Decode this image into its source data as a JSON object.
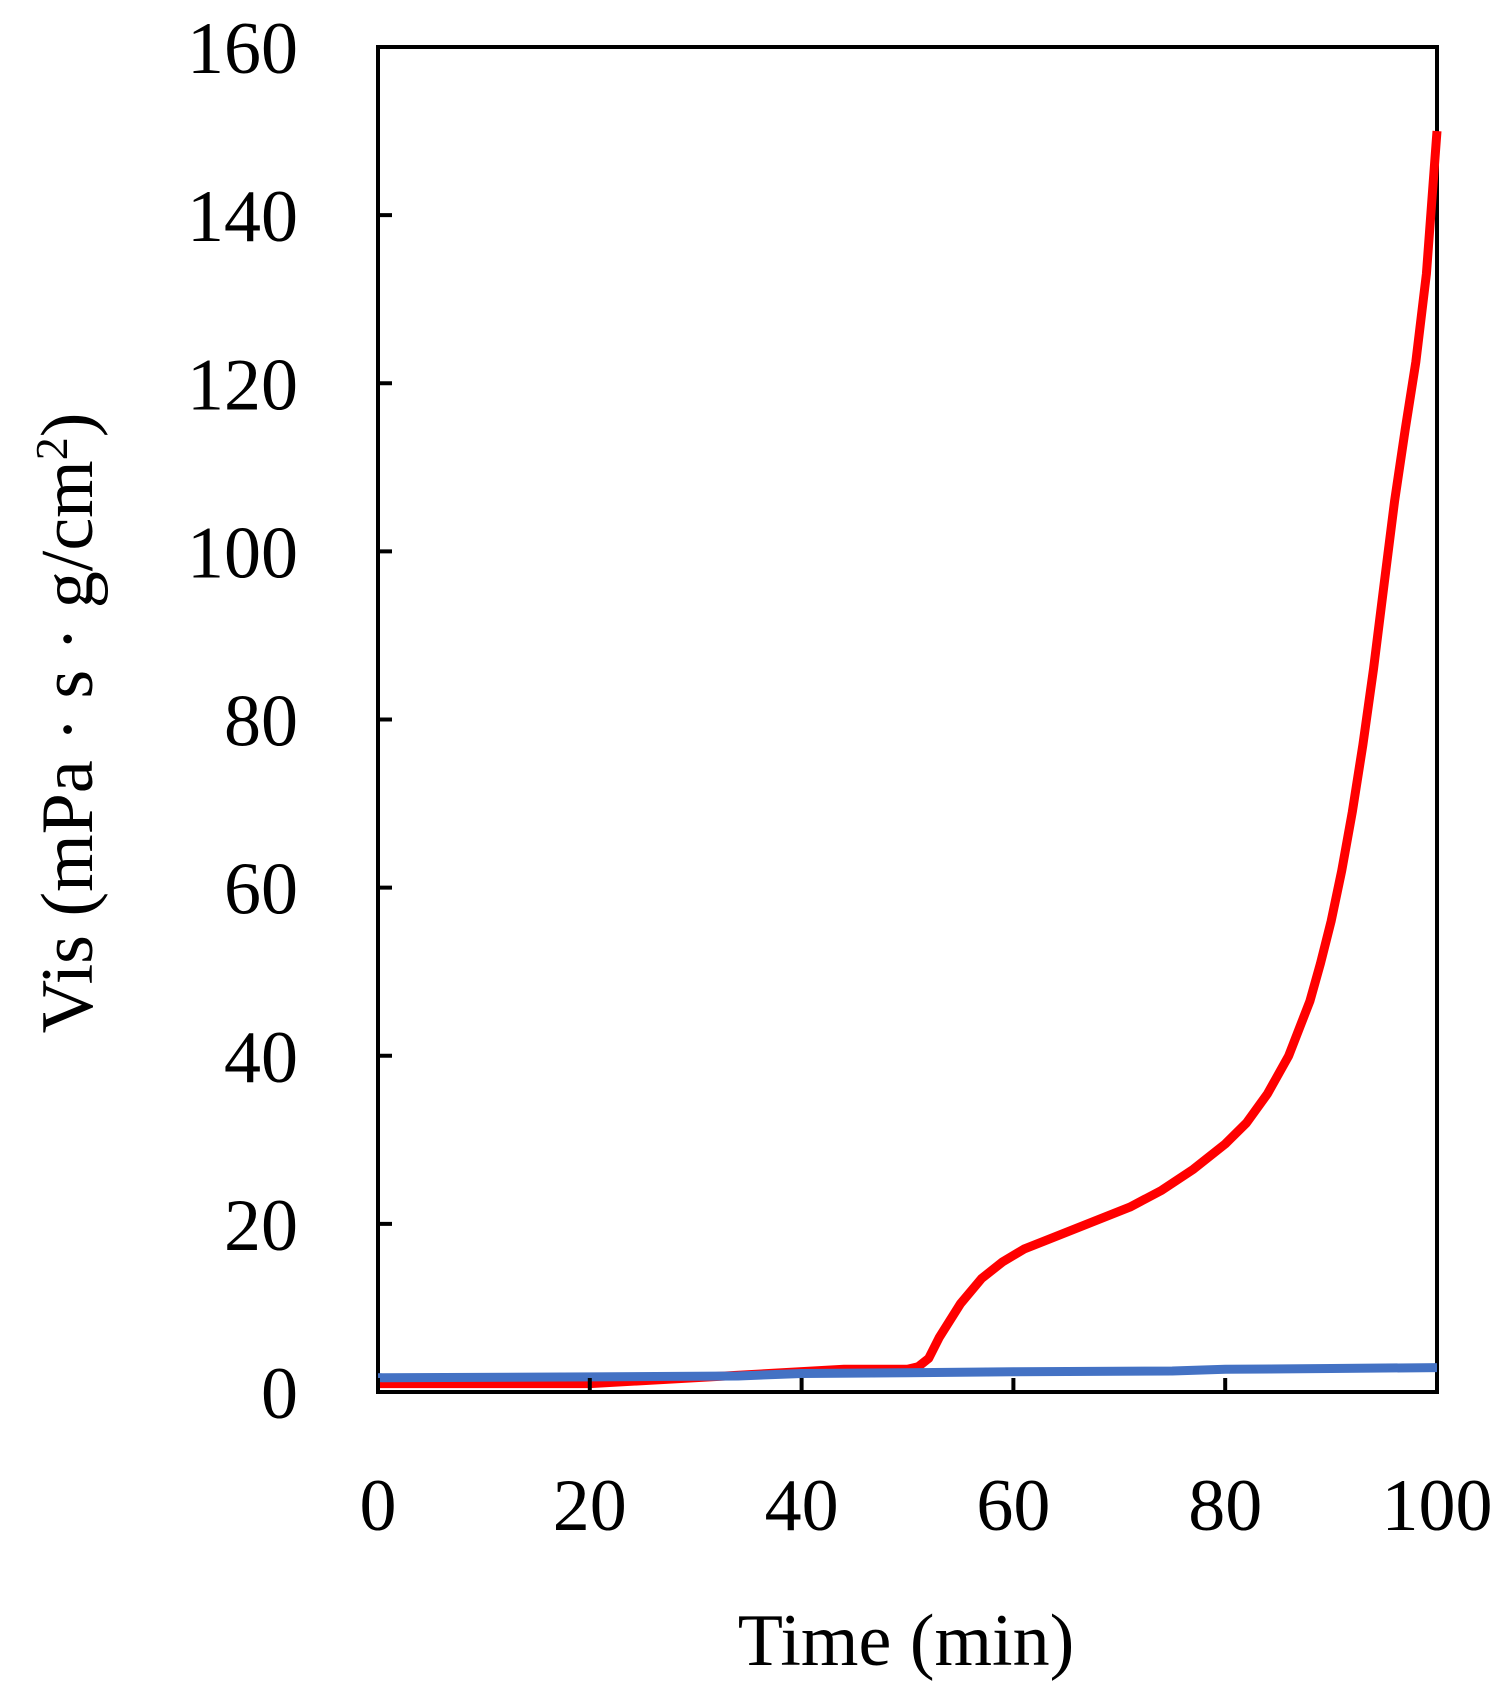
{
  "chart_data": {
    "type": "line",
    "xlabel": "Time (min)",
    "ylabel": {
      "text": "Vis (mPa · s · g/cm",
      "superscript": "2",
      "suffix": ")"
    },
    "xlim": [
      0,
      100
    ],
    "ylim": [
      0,
      160
    ],
    "x_ticks": [
      0,
      20,
      40,
      60,
      80,
      100
    ],
    "y_ticks": [
      0,
      20,
      40,
      60,
      80,
      100,
      120,
      140,
      160
    ],
    "x_tick_labels": [
      "0",
      "20",
      "40",
      "60",
      "80",
      "100"
    ],
    "y_tick_labels": [
      "0",
      "20",
      "40",
      "60",
      "80",
      "100",
      "120",
      "140",
      "160"
    ],
    "grid": false,
    "legend": "none",
    "series": [
      {
        "color": "#ff0000",
        "x": [
          0,
          20,
          44,
          48,
          50,
          51,
          52,
          53,
          55,
          57,
          59,
          61,
          63,
          65,
          68,
          71,
          74,
          77,
          80,
          82,
          84,
          86,
          88,
          89,
          90,
          91,
          92,
          93,
          94,
          95,
          96,
          97,
          98,
          99,
          100
        ],
        "y": [
          1,
          1,
          2.7,
          2.7,
          2.7,
          3,
          4,
          6.5,
          10.5,
          13.5,
          15.5,
          17,
          18,
          19,
          20.5,
          22,
          24,
          26.5,
          29.5,
          32,
          35.5,
          40,
          46.5,
          51,
          56,
          62,
          69,
          77,
          86,
          96,
          106,
          114.5,
          122.5,
          133,
          150
        ]
      },
      {
        "color": "#4472c4",
        "x": [
          0,
          20,
          34,
          40,
          50,
          60,
          75,
          80,
          90,
          100
        ],
        "y": [
          1.7,
          1.8,
          1.9,
          2.2,
          2.3,
          2.4,
          2.5,
          2.7,
          2.8,
          2.9
        ]
      }
    ]
  }
}
